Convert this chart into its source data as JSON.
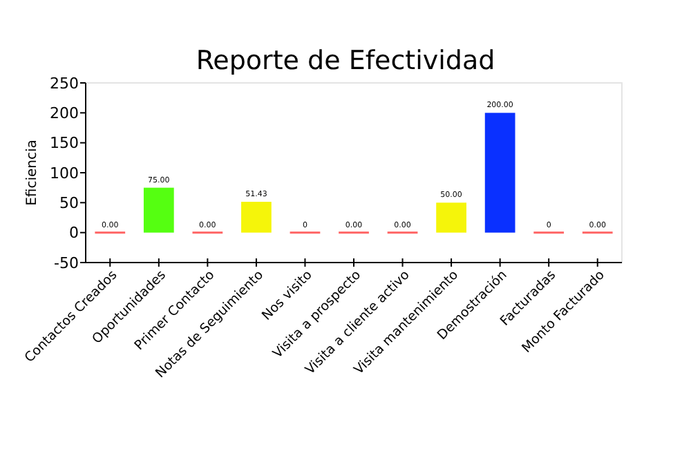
{
  "chart_data": {
    "type": "bar",
    "title": "Reporte de Efectividad",
    "ylabel": "Eficiencia",
    "categories": [
      "Contactos Creados",
      "Oportunidades",
      "Primer Contacto",
      "Notas de Seguimiento",
      "Nos visito",
      "Visita a prospecto",
      "Visita a cliente activo",
      "Visita mantenimiento",
      "Demostración",
      "Facturadas",
      "Monto Facturado"
    ],
    "values": [
      0,
      75,
      0,
      51.43,
      0,
      0,
      0,
      50,
      200,
      0,
      0
    ],
    "colors": [
      "#ff6666",
      "#55ff11",
      "#ff6666",
      "#f5f50a",
      "#ff6666",
      "#ff6666",
      "#ff6666",
      "#f5f50a",
      "#0a30ff",
      "#ff6666",
      "#ff6666"
    ],
    "value_labels": [
      "0.00",
      "75.00",
      "0.00",
      "51.43",
      "0",
      "0.00",
      "0.00",
      "50.00",
      "200.00",
      "0",
      "0.00"
    ],
    "ylim": [
      -50,
      250
    ],
    "yticks": [
      -50,
      0,
      50,
      100,
      150,
      200,
      250
    ]
  }
}
